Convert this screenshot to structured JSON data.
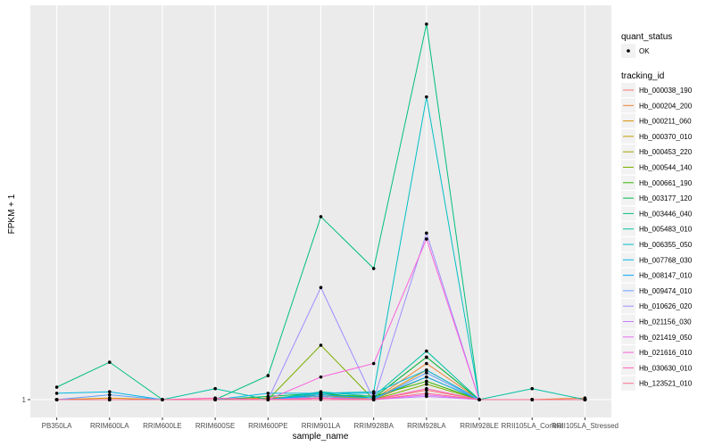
{
  "chart_data": {
    "type": "line",
    "xlabel": "sample_name",
    "ylabel": "FPKM + 1",
    "y_tick_labels": [
      "1"
    ],
    "y_scale": "log",
    "categories": [
      "PB350LA",
      "RRIM600LA",
      "RRIM600LE",
      "RRIM600SE",
      "RRIM600PE",
      "RRIM901LA",
      "RRIM928BA",
      "RRIM928LA",
      "RRIM928LE",
      "RRII105LA_Control",
      "RRII105LA_Stressed"
    ],
    "legend_placement": "right",
    "legend": {
      "status_title": "quant_status",
      "status_entries": [
        "OK"
      ],
      "series_title": "tracking_id"
    },
    "series": [
      {
        "name": "Hb_000038_190",
        "color": "#F8766D",
        "values": [
          1.0,
          1.0,
          1.0,
          1.0,
          1.0,
          1.01,
          1.0,
          1.06,
          1.0,
          1.0,
          1.0
        ]
      },
      {
        "name": "Hb_000204_200",
        "color": "#EA8331",
        "values": [
          1.0,
          1.0,
          1.0,
          1.0,
          1.01,
          1.03,
          1.0,
          1.25,
          1.0,
          1.0,
          1.01
        ]
      },
      {
        "name": "Hb_000211_060",
        "color": "#D89000",
        "values": [
          1.0,
          1.01,
          1.0,
          1.0,
          1.01,
          1.02,
          1.0,
          1.2,
          1.0,
          1.0,
          1.0
        ]
      },
      {
        "name": "Hb_000370_010",
        "color": "#C09B00",
        "values": [
          1.0,
          1.0,
          1.0,
          1.0,
          1.0,
          1.02,
          1.01,
          1.3,
          1.0,
          1.0,
          1.0
        ]
      },
      {
        "name": "Hb_000453_220",
        "color": "#A3A500",
        "values": [
          1.0,
          1.0,
          1.0,
          1.0,
          1.0,
          1.02,
          1.0,
          1.15,
          1.0,
          1.0,
          1.0
        ]
      },
      {
        "name": "Hb_000544_140",
        "color": "#7CAE00",
        "values": [
          1.0,
          1.0,
          1.0,
          1.0,
          1.0,
          1.4,
          1.0,
          1.1,
          1.0,
          1.0,
          1.0
        ]
      },
      {
        "name": "Hb_000661_190",
        "color": "#39B600",
        "values": [
          1.0,
          1.0,
          1.0,
          1.0,
          1.0,
          1.03,
          1.02,
          1.12,
          1.0,
          1.0,
          1.0
        ]
      },
      {
        "name": "Hb_003177_120",
        "color": "#00BB4E",
        "values": [
          1.0,
          1.0,
          1.0,
          1.0,
          1.02,
          1.04,
          1.01,
          1.3,
          1.0,
          1.0,
          1.0
        ]
      },
      {
        "name": "Hb_003446_040",
        "color": "#00BF7D",
        "values": [
          1.08,
          1.26,
          1.0,
          1.0,
          1.16,
          3.1,
          2.25,
          10.2,
          1.0,
          1.0,
          1.0
        ]
      },
      {
        "name": "Hb_005483_010",
        "color": "#00C1A3",
        "values": [
          1.0,
          1.0,
          1.0,
          1.07,
          1.0,
          1.05,
          1.02,
          1.35,
          1.0,
          1.07,
          1.0
        ]
      },
      {
        "name": "Hb_006355_050",
        "color": "#00BFC4",
        "values": [
          1.0,
          1.0,
          1.0,
          1.0,
          1.0,
          1.04,
          1.05,
          6.5,
          1.0,
          1.0,
          1.0
        ]
      },
      {
        "name": "Hb_007768_030",
        "color": "#00B8E5",
        "values": [
          1.04,
          1.05,
          1.0,
          1.0,
          1.04,
          1.04,
          1.04,
          1.2,
          1.0,
          1.0,
          1.0
        ]
      },
      {
        "name": "Hb_008147_010",
        "color": "#00A9FF",
        "values": [
          1.0,
          1.0,
          1.0,
          1.0,
          1.0,
          1.03,
          1.01,
          1.15,
          1.0,
          1.0,
          1.0
        ]
      },
      {
        "name": "Hb_009474_010",
        "color": "#619CFF",
        "values": [
          1.0,
          1.03,
          1.0,
          1.0,
          1.0,
          1.02,
          1.0,
          1.18,
          1.0,
          1.0,
          1.0
        ]
      },
      {
        "name": "Hb_010626_020",
        "color": "#9F8CFF",
        "values": [
          1.0,
          1.0,
          1.0,
          1.0,
          1.0,
          2.0,
          1.0,
          2.8,
          1.0,
          1.0,
          1.0
        ]
      },
      {
        "name": "Hb_021156_030",
        "color": "#C77CFF",
        "values": [
          1.0,
          1.0,
          1.0,
          1.0,
          1.0,
          1.01,
          1.0,
          1.02,
          1.0,
          1.0,
          1.0
        ]
      },
      {
        "name": "Hb_021419_050",
        "color": "#E76BF3",
        "values": [
          1.0,
          1.0,
          1.0,
          1.0,
          1.0,
          1.01,
          1.0,
          1.03,
          1.0,
          1.0,
          1.0
        ]
      },
      {
        "name": "Hb_021616_010",
        "color": "#FA62DB",
        "values": [
          1.0,
          1.0,
          1.0,
          1.0,
          1.0,
          1.15,
          1.25,
          2.7,
          1.0,
          1.0,
          1.0
        ]
      },
      {
        "name": "Hb_030630_010",
        "color": "#FF62BC",
        "values": [
          1.0,
          1.0,
          1.0,
          1.01,
          1.0,
          1.01,
          1.0,
          1.07,
          1.0,
          1.0,
          1.0
        ]
      },
      {
        "name": "Hb_123521_010",
        "color": "#FF6C91",
        "values": [
          1.0,
          1.0,
          1.0,
          1.0,
          1.0,
          1.0,
          1.0,
          1.04,
          1.0,
          1.0,
          1.0
        ]
      }
    ]
  }
}
